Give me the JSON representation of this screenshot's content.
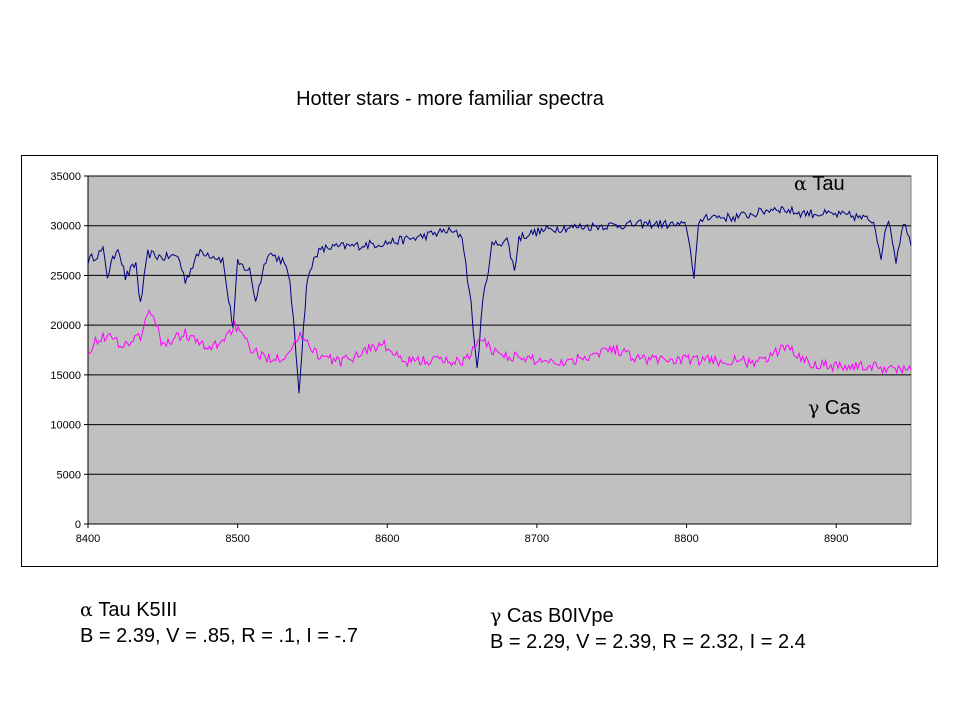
{
  "slide_title": "Hotter stars - more familiar spectra",
  "stars": [
    {
      "symbol": "α",
      "name": "Tau K5III",
      "photometry": "B = 2.39, V = .85, R = .1, I = -.7"
    },
    {
      "symbol": "γ",
      "name": "Cas B0IVpe",
      "photometry": "B = 2.29, V = 2.39, R = 2.32, I = 2.4"
    }
  ],
  "colors": {
    "plot_area": "#c0c0c0",
    "gridline": "#000000",
    "alpha_tau": "#000080",
    "gamma_cas": "#ff00ff"
  },
  "chart_data": {
    "type": "line",
    "title": "",
    "xlabel": "",
    "ylabel": "",
    "xlim": [
      8400,
      8950
    ],
    "ylim": [
      0,
      35000
    ],
    "x_ticks": [
      8400,
      8500,
      8600,
      8700,
      8800,
      8900
    ],
    "y_ticks": [
      0,
      5000,
      10000,
      15000,
      20000,
      25000,
      30000,
      35000
    ],
    "grid": "horizontal",
    "legend": "in-plot labels",
    "annotations": [
      {
        "symbol": "α",
        "text": " Tau",
        "series": "alpha_tau"
      },
      {
        "symbol": "γ",
        "text": " Cas",
        "series": "gamma_cas"
      }
    ],
    "series": [
      {
        "key": "alpha_tau",
        "x": [
          8400,
          8410,
          8413,
          8420,
          8425,
          8432,
          8435,
          8440,
          8450,
          8460,
          8465,
          8475,
          8485,
          8490,
          8494,
          8497,
          8500,
          8508,
          8512,
          8520,
          8530,
          8535,
          8538,
          8541,
          8543,
          8546,
          8552,
          8560,
          8580,
          8600,
          8620,
          8640,
          8650,
          8656,
          8660,
          8664,
          8670,
          8680,
          8685,
          8688,
          8695,
          8710,
          8730,
          8760,
          8780,
          8800,
          8805,
          8808,
          8812,
          8830,
          8845,
          8860,
          8875,
          8890,
          8910,
          8925,
          8930,
          8935,
          8940,
          8945,
          8950
        ],
        "y": [
          26500,
          27500,
          25000,
          28000,
          24800,
          26200,
          22000,
          27200,
          26800,
          27000,
          24500,
          27500,
          26900,
          26600,
          22500,
          19800,
          26200,
          25500,
          22500,
          27300,
          26500,
          24500,
          19000,
          13500,
          17500,
          24000,
          27200,
          27800,
          28000,
          28300,
          28800,
          29500,
          29000,
          22000,
          15500,
          22500,
          28000,
          28600,
          25500,
          28800,
          29200,
          29700,
          29900,
          30100,
          30200,
          30000,
          25000,
          29800,
          31000,
          30800,
          31200,
          31800,
          31300,
          31200,
          31000,
          30500,
          27000,
          30800,
          26500,
          30500,
          28000
        ]
      },
      {
        "key": "gamma_cas",
        "x": [
          8400,
          8410,
          8425,
          8435,
          8442,
          8450,
          8465,
          8480,
          8490,
          8498,
          8505,
          8515,
          8530,
          8543,
          8555,
          8570,
          8590,
          8598,
          8610,
          8630,
          8650,
          8663,
          8672,
          8690,
          8720,
          8750,
          8770,
          8800,
          8850,
          8868,
          8880,
          8900,
          8925,
          8950
        ],
        "y": [
          17500,
          19000,
          18000,
          19000,
          21500,
          18000,
          19200,
          17500,
          18500,
          20000,
          18300,
          16800,
          16800,
          19000,
          16800,
          16300,
          17800,
          18000,
          16300,
          16500,
          16300,
          18500,
          17300,
          16600,
          16300,
          17700,
          16600,
          16500,
          16300,
          18000,
          16300,
          15900,
          15800,
          15500
        ]
      }
    ]
  }
}
